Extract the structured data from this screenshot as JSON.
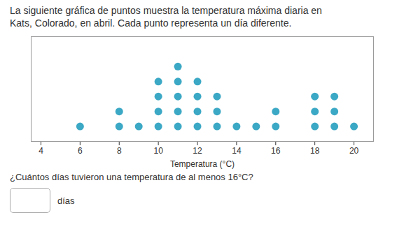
{
  "chart_data": {
    "type": "dot",
    "title": "La siguiente gráfica de puntos muestra la temperatura máxima diaria en",
    "subtitle": "Kats, Colorado, en abril. Cada punto representa un día diferente.",
    "x_label": "Temperatura (°C)",
    "x": [
      6,
      8,
      9,
      10,
      11,
      12,
      13,
      14,
      15,
      16,
      18,
      19,
      20
    ],
    "values": [
      1,
      2,
      1,
      4,
      5,
      4,
      3,
      1,
      1,
      2,
      3,
      3,
      1
    ],
    "color": "#3ba8c5",
    "xlim": [
      3.5,
      21
    ],
    "xticks": [
      4,
      6,
      8,
      10,
      12,
      14,
      16,
      18,
      20
    ],
    "ylim": [
      0,
      7
    ],
    "tick_labels": "x",
    "grid": false,
    "annotations": [
      "¿Cuántos días tuvieron una temperatura de al menos 16°C?",
      "días"
    ]
  }
}
